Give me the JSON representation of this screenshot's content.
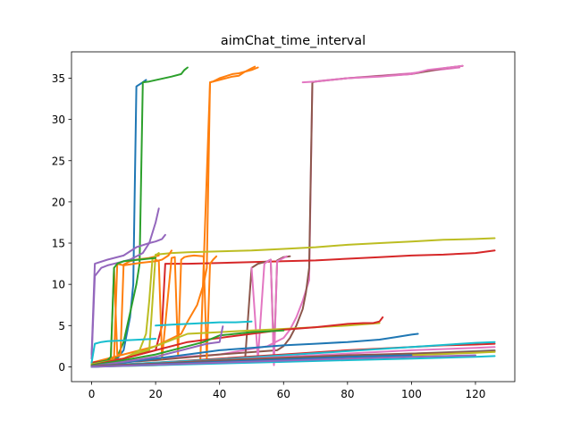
{
  "chart_data": {
    "type": "line",
    "title": "aimChat_time_interval",
    "xlabel": "",
    "ylabel": "",
    "xlim": [
      -6.3,
      132.3
    ],
    "ylim": [
      -1.8,
      38.2
    ],
    "xticks": [
      0,
      20,
      40,
      60,
      80,
      100,
      120
    ],
    "yticks": [
      0,
      5,
      10,
      15,
      20,
      25,
      30,
      35
    ],
    "xtick_labels": [
      "0",
      "20",
      "40",
      "60",
      "80",
      "100",
      "120"
    ],
    "ytick_labels": [
      "0",
      "5",
      "10",
      "15",
      "20",
      "25",
      "30",
      "35"
    ],
    "grid": false,
    "legend": "none",
    "series": [
      {
        "color": "#1f77b4",
        "x": [
          0,
          5,
          8,
          10,
          12,
          13,
          14,
          16,
          17
        ],
        "y": [
          0.2,
          0.6,
          1.0,
          2.0,
          6.0,
          10.0,
          34.0,
          34.5,
          34.8
        ]
      },
      {
        "color": "#2ca02c",
        "x": [
          0,
          5,
          8,
          10,
          12,
          14,
          15,
          16,
          18,
          25,
          28,
          29,
          30
        ],
        "y": [
          0.2,
          0.7,
          1.2,
          3.0,
          6.5,
          10.0,
          12.5,
          34.5,
          34.6,
          35.2,
          35.5,
          36.0,
          36.3
        ]
      },
      {
        "color": "#ff7f0e",
        "x": [
          0,
          10,
          20,
          28,
          30,
          33,
          35,
          36,
          37,
          38,
          40,
          44,
          46,
          48,
          50,
          51
        ],
        "y": [
          0.5,
          1.5,
          2.5,
          4.0,
          5.5,
          7.5,
          10.0,
          12.0,
          34.5,
          34.6,
          35.0,
          35.5,
          35.6,
          35.8,
          36.2,
          36.4
        ]
      },
      {
        "color": "#ff7f0e",
        "x": [
          34,
          37,
          40,
          44,
          46,
          48,
          50,
          52
        ],
        "y": [
          1.0,
          34.5,
          34.8,
          35.2,
          35.3,
          35.8,
          36.0,
          36.3
        ]
      },
      {
        "color": "#e377c2",
        "x": [
          0,
          20,
          40,
          55,
          60,
          62,
          64,
          66,
          68,
          69,
          70,
          72,
          80,
          100,
          108,
          115
        ],
        "y": [
          0.5,
          1.0,
          1.5,
          2.5,
          3.5,
          4.5,
          6.0,
          8.0,
          10.5,
          34.5,
          34.6,
          34.7,
          35.0,
          35.6,
          36.0,
          36.3
        ]
      },
      {
        "color": "#8c564b",
        "x": [
          0,
          20,
          40,
          58,
          60,
          62,
          64,
          66,
          67,
          68,
          69,
          70,
          80,
          100,
          110,
          116
        ],
        "y": [
          0.3,
          0.8,
          1.5,
          2.0,
          2.5,
          3.5,
          5.0,
          7.0,
          9.0,
          12.0,
          34.5,
          34.6,
          35.0,
          35.5,
          36.2,
          36.5
        ]
      },
      {
        "color": "#e377c2",
        "x": [
          66,
          70,
          75,
          80,
          90,
          100,
          105,
          116
        ],
        "y": [
          34.5,
          34.6,
          34.8,
          35.0,
          35.2,
          35.5,
          36.0,
          36.5
        ]
      },
      {
        "color": "#9467bd",
        "x": [
          0,
          1,
          5,
          10,
          14,
          18,
          20,
          22,
          23
        ],
        "y": [
          1.5,
          12.5,
          13.0,
          13.5,
          14.5,
          15.0,
          15.2,
          15.5,
          16.0
        ]
      },
      {
        "color": "#9467bd",
        "x": [
          0,
          1,
          3,
          5,
          8,
          12,
          16,
          18,
          20,
          21
        ],
        "y": [
          1.0,
          11.0,
          12.0,
          12.3,
          12.6,
          13.0,
          13.8,
          15.0,
          17.5,
          19.2
        ]
      },
      {
        "color": "#bcbd22",
        "x": [
          0,
          10,
          18,
          20,
          25,
          30,
          40,
          50,
          60,
          70,
          80,
          90,
          100,
          110,
          120,
          126
        ],
        "y": [
          0.5,
          1.0,
          2.0,
          13.6,
          13.8,
          13.9,
          14.0,
          14.1,
          14.3,
          14.5,
          14.8,
          15.0,
          15.2,
          15.4,
          15.5,
          15.6
        ]
      },
      {
        "color": "#d62728",
        "x": [
          0,
          10,
          20,
          22,
          23,
          30,
          40,
          50,
          60,
          70,
          80,
          90,
          100,
          110,
          120,
          126
        ],
        "y": [
          0.5,
          1.0,
          2.0,
          5.0,
          12.5,
          12.5,
          12.6,
          12.7,
          12.8,
          12.9,
          13.1,
          13.3,
          13.5,
          13.6,
          13.8,
          14.1
        ]
      },
      {
        "color": "#ff7f0e",
        "x": [
          0,
          5,
          7,
          8,
          10,
          15,
          20,
          22,
          24,
          25
        ],
        "y": [
          0.2,
          0.5,
          1.0,
          12.5,
          12.3,
          12.6,
          12.8,
          13.0,
          13.5,
          14.1
        ]
      },
      {
        "color": "#ff7f0e",
        "x": [
          6,
          7,
          8,
          9,
          10,
          11,
          12,
          14,
          18,
          20,
          21
        ],
        "y": [
          1.0,
          12.0,
          1.5,
          1.5,
          12.4,
          12.6,
          12.8,
          13.0,
          13.2,
          13.4,
          13.5
        ]
      },
      {
        "color": "#ff7f0e",
        "x": [
          20,
          21,
          22,
          25,
          26,
          27,
          28,
          29,
          30,
          32,
          35,
          36,
          37,
          38,
          39
        ],
        "y": [
          13.0,
          12.8,
          1.0,
          13.2,
          13.3,
          1.5,
          13.0,
          13.3,
          13.4,
          13.5,
          13.4,
          1.0,
          12.5,
          13.0,
          13.4
        ]
      },
      {
        "color": "#8c564b",
        "x": [
          48,
          50,
          52,
          55,
          56,
          57,
          58,
          59,
          60,
          62
        ],
        "y": [
          1.0,
          12.0,
          12.5,
          12.8,
          13.0,
          1.0,
          12.9,
          13.1,
          13.3,
          13.4
        ]
      },
      {
        "color": "#e377c2",
        "x": [
          50,
          52,
          54,
          55,
          56,
          57,
          58,
          59,
          60,
          61
        ],
        "y": [
          12.0,
          1.0,
          12.5,
          12.8,
          13.0,
          0.2,
          12.8,
          13.0,
          13.2,
          13.4
        ]
      },
      {
        "color": "#bcbd22",
        "x": [
          0,
          5,
          10,
          15,
          17,
          18,
          19,
          20,
          21
        ],
        "y": [
          0.2,
          0.5,
          1.0,
          2.0,
          4.0,
          8.0,
          13.0,
          13.5,
          13.8
        ]
      },
      {
        "color": "#2ca02c",
        "x": [
          0,
          5,
          6,
          7,
          8,
          10,
          15,
          20
        ],
        "y": [
          0.3,
          0.8,
          1.2,
          12.0,
          12.5,
          12.8,
          13.0,
          13.2
        ]
      },
      {
        "color": "#17becf",
        "x": [
          0,
          1,
          3,
          5,
          10,
          15,
          20
        ],
        "y": [
          0.5,
          2.8,
          3.0,
          3.1,
          3.2,
          3.3,
          3.4
        ]
      },
      {
        "color": "#17becf",
        "x": [
          20,
          25,
          30,
          35,
          40,
          45,
          50
        ],
        "y": [
          5.0,
          5.1,
          5.2,
          5.3,
          5.4,
          5.4,
          5.5
        ]
      },
      {
        "color": "#bcbd22",
        "x": [
          0,
          10,
          20,
          30,
          40,
          50,
          60,
          70,
          80,
          90
        ],
        "y": [
          0.3,
          1.0,
          2.5,
          4.0,
          4.2,
          4.4,
          4.6,
          4.8,
          5.0,
          5.3
        ]
      },
      {
        "color": "#d62728",
        "x": [
          0,
          10,
          20,
          30,
          40,
          50,
          60,
          70,
          80,
          85,
          88,
          90,
          91
        ],
        "y": [
          0.2,
          1.0,
          2.0,
          3.0,
          3.5,
          4.0,
          4.5,
          4.8,
          5.2,
          5.3,
          5.3,
          5.5,
          6.0
        ]
      },
      {
        "color": "#2ca02c",
        "x": [
          0,
          10,
          20,
          30,
          35,
          40,
          45,
          50,
          55,
          60
        ],
        "y": [
          0.2,
          0.8,
          1.5,
          2.5,
          3.0,
          3.8,
          4.0,
          4.2,
          4.3,
          4.4
        ]
      },
      {
        "color": "#1f77b4",
        "x": [
          0,
          10,
          20,
          30,
          40,
          50,
          60,
          70,
          80,
          90,
          95,
          100,
          102
        ],
        "y": [
          0.1,
          0.5,
          1.0,
          1.5,
          2.0,
          2.3,
          2.6,
          2.8,
          3.0,
          3.3,
          3.6,
          3.9,
          4.0
        ]
      },
      {
        "color": "#9467bd",
        "x": [
          0,
          10,
          20,
          30,
          36,
          40,
          41
        ],
        "y": [
          0.1,
          0.6,
          1.2,
          2.2,
          2.8,
          3.0,
          4.9
        ]
      },
      {
        "color": "#d62728",
        "x": [
          0,
          20,
          40,
          60,
          80,
          100,
          110,
          120,
          126
        ],
        "y": [
          0.1,
          0.5,
          1.0,
          1.5,
          2.0,
          2.4,
          2.6,
          2.7,
          2.8
        ]
      },
      {
        "color": "#17becf",
        "x": [
          0,
          20,
          40,
          60,
          80,
          100,
          120,
          126
        ],
        "y": [
          0.1,
          0.5,
          0.9,
          1.4,
          1.9,
          2.4,
          2.9,
          3.0
        ]
      },
      {
        "color": "#e377c2",
        "x": [
          0,
          20,
          40,
          60,
          80,
          100,
          120,
          126
        ],
        "y": [
          0.0,
          0.4,
          0.8,
          1.2,
          1.6,
          2.0,
          2.3,
          2.4
        ]
      },
      {
        "color": "#7f7f7f",
        "x": [
          0,
          20,
          40,
          60,
          80,
          100,
          120,
          126
        ],
        "y": [
          0.0,
          0.3,
          0.7,
          1.0,
          1.3,
          1.6,
          1.9,
          2.0
        ]
      },
      {
        "color": "#8c564b",
        "x": [
          0,
          20,
          40,
          60,
          80,
          100,
          120,
          126
        ],
        "y": [
          0.1,
          0.4,
          0.8,
          1.1,
          1.4,
          1.6,
          1.8,
          1.9
        ]
      },
      {
        "color": "#bcbd22",
        "x": [
          0,
          20,
          40,
          60,
          80,
          100,
          120,
          126
        ],
        "y": [
          0.0,
          0.2,
          0.5,
          0.8,
          1.1,
          1.4,
          1.7,
          1.8
        ]
      },
      {
        "color": "#17becf",
        "x": [
          0,
          20,
          40,
          60,
          80,
          100,
          120,
          126
        ],
        "y": [
          0.0,
          0.2,
          0.4,
          0.6,
          0.8,
          1.0,
          1.2,
          1.3
        ]
      },
      {
        "color": "#1f77b4",
        "x": [
          0,
          20,
          40,
          60,
          80,
          100
        ],
        "y": [
          0.0,
          0.3,
          0.6,
          0.9,
          1.2,
          1.4
        ]
      },
      {
        "color": "#9467bd",
        "x": [
          0,
          20,
          40,
          60,
          80,
          100,
          120
        ],
        "y": [
          0.0,
          0.25,
          0.5,
          0.75,
          1.0,
          1.2,
          1.4
        ]
      }
    ]
  }
}
